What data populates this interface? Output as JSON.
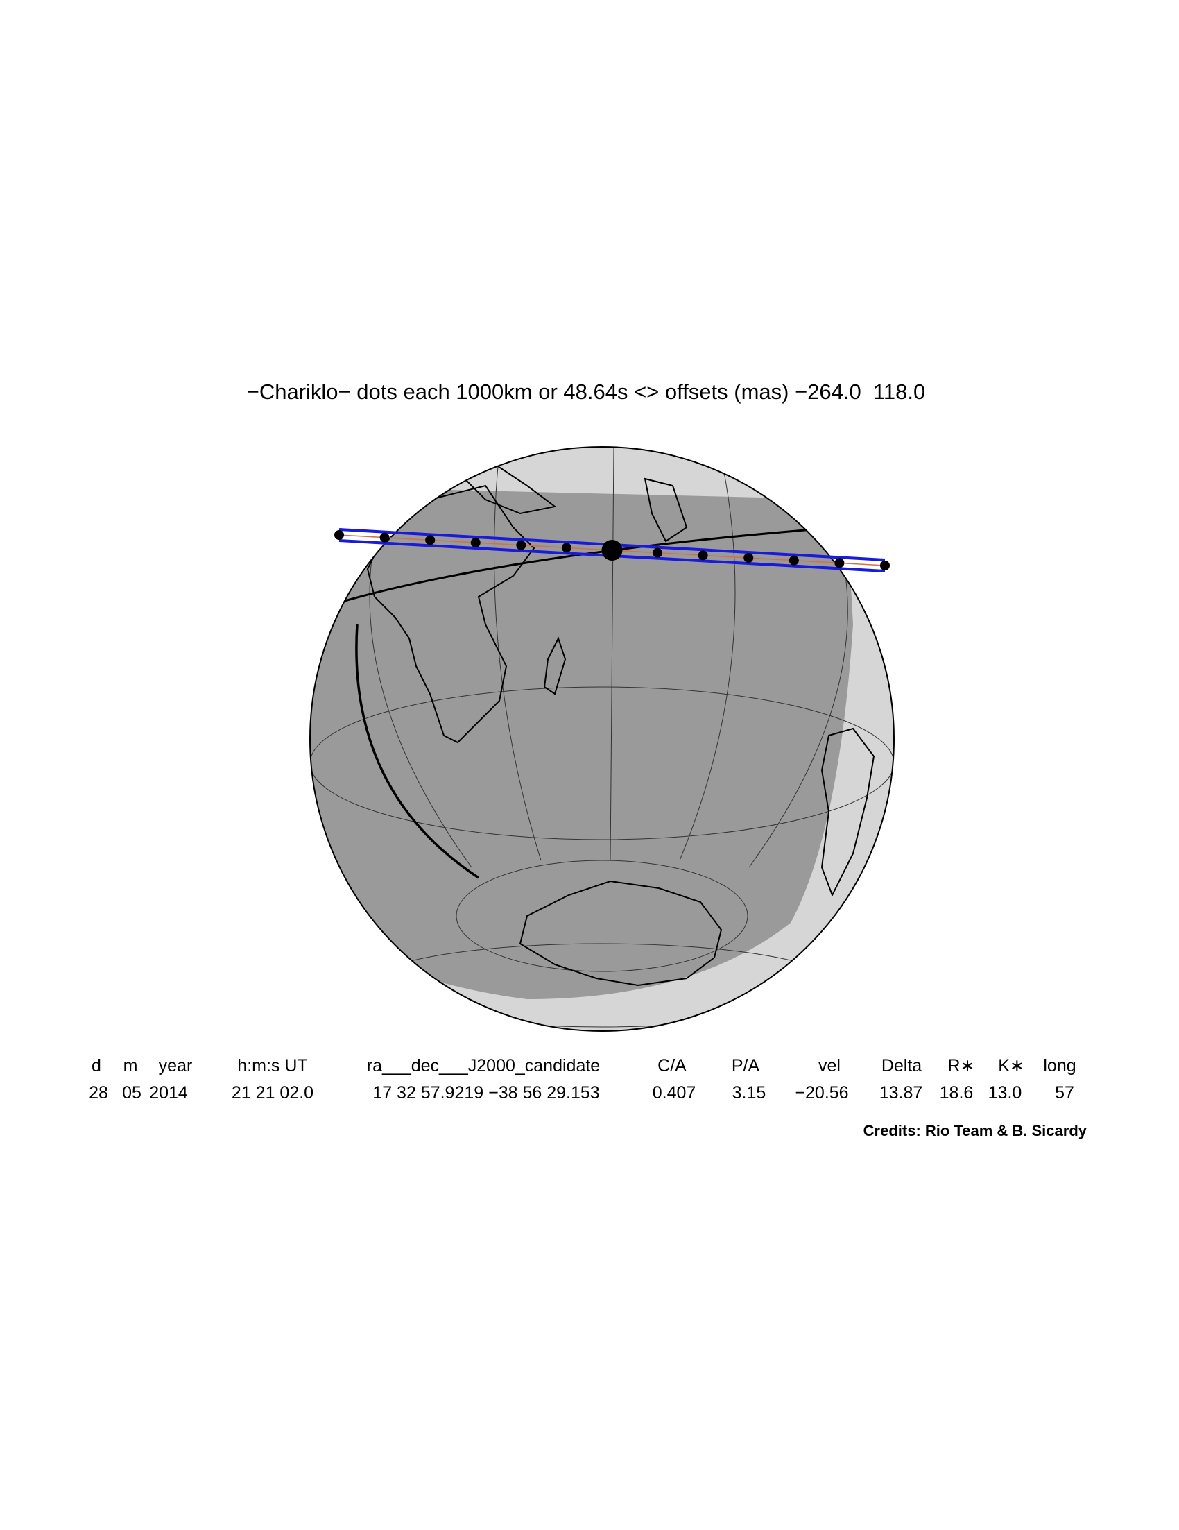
{
  "title": "−Chariklo− dots each 1000km or 48.64s <> offsets (mas) −264.0  118.0",
  "table": {
    "header": [
      "d",
      "m",
      "year",
      "h:m:s UT",
      "ra___dec___J2000_candidate",
      "C/A",
      "P/A",
      "vel",
      "Delta",
      "R∗",
      "K∗",
      "long"
    ],
    "row": [
      "28",
      "05",
      "2014",
      "21 21 02.0",
      "17 32 57.9219 −38 56 29.153",
      "0.407",
      "3.15",
      "−20.56",
      "13.87",
      "18.6",
      "13.0",
      "57"
    ]
  },
  "credits": "Credits: Rio Team & B. Sicardy"
}
